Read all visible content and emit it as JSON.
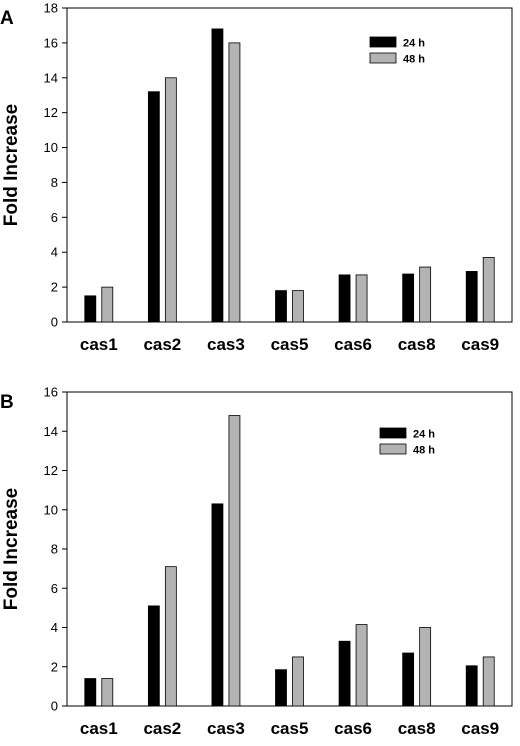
{
  "chart_data": [
    {
      "panel_label": "A",
      "type": "bar",
      "ylabel": "Fold Increase",
      "ylim": [
        0,
        18
      ],
      "yticks": [
        0,
        2,
        4,
        6,
        8,
        10,
        12,
        14,
        16,
        18
      ],
      "categories": [
        "cas1",
        "cas2",
        "cas3",
        "cas5",
        "cas6",
        "cas8",
        "cas9"
      ],
      "series": [
        {
          "name": "24 h",
          "color": "#000000",
          "values": [
            1.5,
            13.2,
            16.8,
            1.8,
            2.7,
            2.75,
            2.9
          ]
        },
        {
          "name": "48 h",
          "color": "#b3b3b3",
          "values": [
            2.0,
            14.0,
            16.0,
            1.8,
            2.7,
            3.15,
            3.7
          ]
        }
      ],
      "legend_position": "top-right",
      "grid": false
    },
    {
      "panel_label": "B",
      "type": "bar",
      "ylabel": "Fold Increase",
      "ylim": [
        0,
        16
      ],
      "yticks": [
        0,
        2,
        4,
        6,
        8,
        10,
        12,
        14,
        16
      ],
      "categories": [
        "cas1",
        "cas2",
        "cas3",
        "cas5",
        "cas6",
        "cas8",
        "cas9"
      ],
      "series": [
        {
          "name": "24 h",
          "color": "#000000",
          "values": [
            1.4,
            5.1,
            10.3,
            1.85,
            3.3,
            2.7,
            2.05
          ]
        },
        {
          "name": "48 h",
          "color": "#b3b3b3",
          "values": [
            1.4,
            7.1,
            14.8,
            2.5,
            4.15,
            4.0,
            2.5
          ]
        }
      ],
      "legend_position": "top-right",
      "grid": false
    }
  ]
}
